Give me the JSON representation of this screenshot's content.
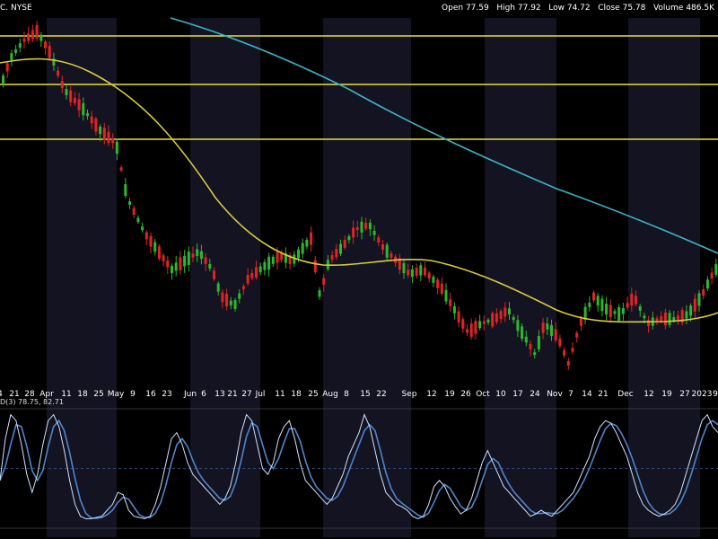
{
  "header": {
    "ticker": "C. NYSE",
    "open_label": "Open",
    "open": "77.59",
    "high_label": "High",
    "high": "77.92",
    "low_label": "Low",
    "low": "74.72",
    "close_label": "Close",
    "close": "75.78",
    "volume_label": "Volume",
    "volume": "486.5K"
  },
  "indicator": {
    "label": "D(3)",
    "k": "78.75",
    "d": "82.71"
  },
  "colors": {
    "background": "#000000",
    "band": "#131321",
    "up": "#2db82d",
    "down": "#e02424",
    "sma_fast": "#d8cc3c",
    "sma_slow": "#3bb4c8",
    "hline": "#e8e040",
    "stoch_k": "#cfe4ff",
    "stoch_d": "#4f86c8",
    "axis_text": "#ffffff"
  },
  "chart_data": {
    "type": "candlestick",
    "x_tick_labels": [
      "4",
      "21",
      "28",
      "Apr",
      "11",
      "18",
      "25",
      "May",
      "9",
      "16",
      "23",
      "Jun",
      "6",
      "13",
      "21",
      "27",
      "Jul",
      "11",
      "18",
      "25",
      "Aug",
      "8",
      "15",
      "22",
      "Sep",
      "12",
      "19",
      "26",
      "Oct",
      "10",
      "17",
      "24",
      "Nov",
      "7",
      "14",
      "21",
      "Dec",
      "12",
      "19",
      "27",
      "2023",
      "9"
    ],
    "horizontal_levels": [
      "upper",
      "middle",
      "lower"
    ],
    "series": [
      {
        "name": "price",
        "kind": "candles"
      },
      {
        "kind": "moving_average_fast"
      },
      {
        "kind": "moving_average_slow"
      }
    ],
    "stochastic": {
      "k_values": [
        40,
        75,
        95,
        90,
        70,
        45,
        30,
        45,
        70,
        90,
        95,
        85,
        65,
        40,
        20,
        10,
        8,
        8,
        9,
        10,
        15,
        20,
        30,
        28,
        15,
        10,
        9,
        8,
        10,
        20,
        35,
        55,
        75,
        80,
        70,
        55,
        45,
        40,
        35,
        30,
        25,
        20,
        25,
        35,
        55,
        80,
        95,
        90,
        70,
        50,
        45,
        55,
        75,
        85,
        90,
        75,
        55,
        40,
        35,
        30,
        25,
        20,
        25,
        35,
        45,
        60,
        70,
        80,
        95,
        85,
        65,
        45,
        30,
        25,
        20,
        18,
        15,
        10,
        8,
        10,
        20,
        35,
        40,
        35,
        25,
        18,
        12,
        15,
        25,
        40,
        55,
        65,
        55,
        45,
        35,
        30,
        25,
        20,
        15,
        10,
        12,
        15,
        12,
        10,
        15,
        20,
        25,
        30,
        40,
        50,
        60,
        75,
        85,
        90,
        88,
        80,
        70,
        60,
        45,
        30,
        20,
        15,
        12,
        10,
        12,
        15,
        20,
        30,
        45,
        60,
        75,
        90,
        95,
        85,
        80
      ]
    }
  }
}
